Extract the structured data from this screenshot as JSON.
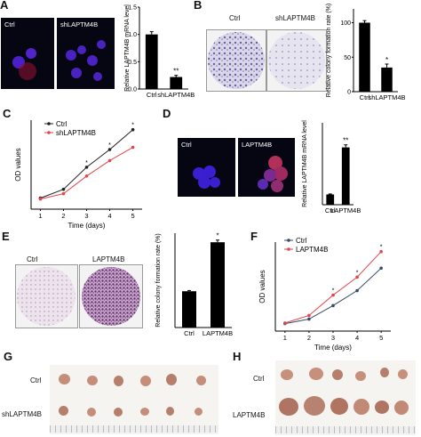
{
  "panels": {
    "A": {
      "letter": "A",
      "micro_labels": [
        "Ctrl",
        "shLAPTM4B"
      ]
    },
    "B": {
      "letter": "B",
      "dish_labels": [
        "Ctrl",
        "shLAPTM4B"
      ]
    },
    "C": {
      "letter": "C"
    },
    "D": {
      "letter": "D",
      "micro_labels": [
        "Ctrl",
        "LAPTM4B"
      ]
    },
    "E": {
      "letter": "E",
      "dish_labels": [
        "Ctrl",
        "LAPTM4B"
      ]
    },
    "F": {
      "letter": "F"
    },
    "G": {
      "letter": "G",
      "row_labels": [
        "Ctrl",
        "shLAPTM4B"
      ]
    },
    "H": {
      "letter": "H",
      "row_labels": [
        "Ctrl",
        "LAPTM4B"
      ]
    }
  },
  "chart_data": [
    {
      "id": "A",
      "type": "bar",
      "categories": [
        "Ctrl",
        "shLAPTM4B"
      ],
      "values": [
        1.0,
        0.22
      ],
      "errors": [
        0.05,
        0.03
      ],
      "ylabel": "Relative LAPTM4B mRNA level",
      "ylim": [
        0,
        1.5
      ],
      "yticks": [
        "0.0",
        "0.5",
        "1.0",
        "1.5"
      ],
      "annotations": [
        "",
        "**"
      ]
    },
    {
      "id": "B",
      "type": "bar",
      "categories": [
        "Ctrl",
        "shLAPTM4B"
      ],
      "values": [
        100,
        35
      ],
      "errors": [
        3,
        5
      ],
      "ylabel": "Relative colony formation rate (%)",
      "ylim": [
        0,
        120
      ],
      "yticks": [
        "0",
        "50",
        "100"
      ],
      "annotations": [
        "",
        "*"
      ]
    },
    {
      "id": "C",
      "type": "line",
      "x": [
        1,
        2,
        3,
        4,
        5
      ],
      "xlabel": "Time (days)",
      "ylabel": "OD values",
      "series": [
        {
          "name": "Ctrl",
          "values": [
            0.25,
            0.45,
            0.95,
            1.35,
            1.8
          ],
          "color": "#222222"
        },
        {
          "name": "shLAPTM4B",
          "values": [
            0.23,
            0.35,
            0.75,
            1.1,
            1.4
          ],
          "color": "#e0474c"
        }
      ],
      "markers": [
        "",
        "",
        "*",
        "*",
        "*"
      ]
    },
    {
      "id": "D",
      "type": "bar",
      "categories": [
        "Ctrl",
        "LAPTM4B"
      ],
      "values": [
        1.0,
        5.6
      ],
      "errors": [
        0.05,
        0.25
      ],
      "ylabel": "Relative LAPTM4B mRNA level",
      "ylim": [
        0,
        8
      ],
      "annotations": [
        "",
        "**"
      ]
    },
    {
      "id": "E",
      "type": "bar",
      "categories": [
        "Ctrl",
        "LAPTM4B"
      ],
      "values": [
        100,
        235
      ],
      "errors": [
        2,
        6
      ],
      "ylabel": "Relative colony formation rate (%)",
      "ylim": [
        0,
        260
      ],
      "annotations": [
        "",
        "*"
      ]
    },
    {
      "id": "F",
      "type": "line",
      "x": [
        1,
        2,
        3,
        4,
        5
      ],
      "xlabel": "Time (days)",
      "ylabel": "OD values",
      "series": [
        {
          "name": "Ctrl",
          "values": [
            0.25,
            0.4,
            0.85,
            1.35,
            2.1
          ],
          "color": "#3a4a66"
        },
        {
          "name": "LAPTM4B",
          "values": [
            0.27,
            0.52,
            1.2,
            1.8,
            2.65
          ],
          "color": "#e0474c"
        }
      ],
      "markers": [
        "",
        "",
        "*",
        "*",
        "*"
      ]
    }
  ],
  "ruler_text": "▮▮▮▮▮▮▮▮▮▮▮▮▮▮▮▮▮▮▮▮▮▮▮▮▮▮▮▮▮▮▮"
}
